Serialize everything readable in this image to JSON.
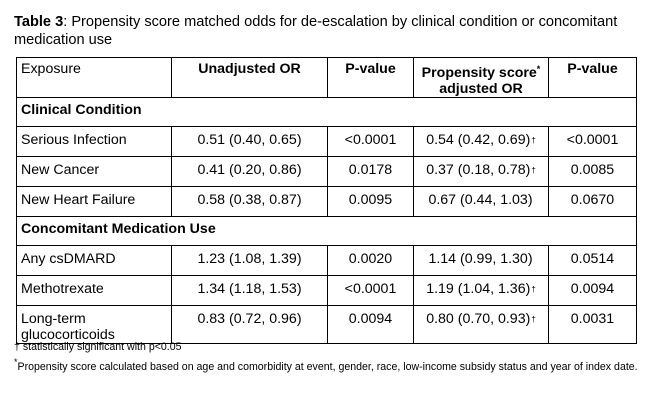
{
  "caption": {
    "label": "Table 3",
    "text": ": Propensity score matched odds for de-escalation by clinical condition or concomitant medication use"
  },
  "table": {
    "headers": {
      "exposure": "Exposure",
      "unadjusted": "Unadjusted OR",
      "pvalue1": "P-value",
      "adjusted_a": "Propensity score",
      "adjusted_star": "*",
      "adjusted_b": "adjusted OR",
      "pvalue2": "P-value"
    },
    "sections": [
      {
        "title": "Clinical Condition",
        "rows": [
          {
            "exposure": "Serious Infection",
            "unadj": "0.51 (0.40, 0.65)",
            "p1": "<0.0001",
            "adj": "0.54 (0.42, 0.69)",
            "adj_mark": "†",
            "p2": "<0.0001"
          },
          {
            "exposure": "New Cancer",
            "unadj": "0.41 (0.20, 0.86)",
            "p1": "0.0178",
            "adj": "0.37 (0.18, 0.78)",
            "adj_mark": "†",
            "p2": "0.0085"
          },
          {
            "exposure": "New Heart Failure",
            "unadj": "0.58 (0.38, 0.87)",
            "p1": "0.0095",
            "adj": "0.67 (0.44, 1.03)",
            "adj_mark": "",
            "p2": "0.0670"
          }
        ]
      },
      {
        "title": "Concomitant Medication Use",
        "rows": [
          {
            "exposure": "Any csDMARD",
            "unadj": "1.23 (1.08, 1.39)",
            "p1": "0.0020",
            "adj": "1.14 (0.99, 1.30)",
            "adj_mark": "",
            "p2": "0.0514"
          },
          {
            "exposure": "Methotrexate",
            "unadj": "1.34 (1.18, 1.53)",
            "p1": "<0.0001",
            "adj": "1.19 (1.04, 1.36)",
            "adj_mark": "†",
            "p2": "0.0094"
          },
          {
            "exposure": "Long-term glucocorticoids",
            "unadj": "0.83 (0.72, 0.96)",
            "p1": "0.0094",
            "adj": "0.80 (0.70, 0.93)",
            "adj_mark": "†",
            "p2": "0.0031"
          }
        ]
      }
    ]
  },
  "footnotes": {
    "dagger": "† statistically significant with p<0.05",
    "star_mark": "*",
    "star_text": "Propensity score calculated based on age and comorbidity at event, gender, race, low-income subsidy status and year of index date."
  }
}
